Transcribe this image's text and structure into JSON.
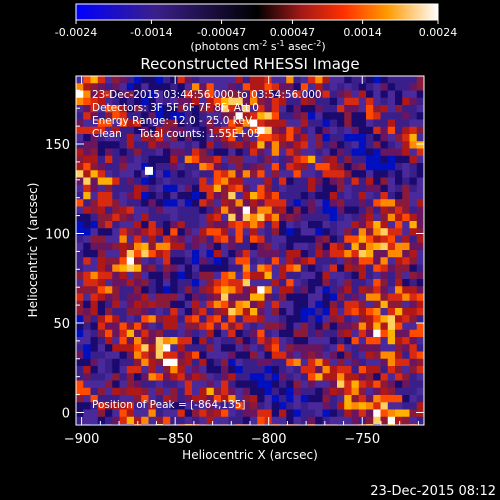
{
  "colorbar": {
    "ticks": [
      "-0.0024",
      "-0.0014",
      "-0.00047",
      "0.00047",
      "0.0014",
      "0.0024"
    ],
    "tick_values": [
      -0.0024,
      -0.0014,
      -0.00047,
      0.00047,
      0.0014,
      0.0024
    ],
    "range": [
      -0.0024,
      0.0024
    ],
    "unit_prefix": "(photons cm",
    "unit_exp1": "-2",
    "unit_mid": " s",
    "unit_exp2": "-1",
    "unit_mid2": " asec",
    "unit_exp3": "-2",
    "unit_suffix": ")",
    "stops": [
      "#0000ff",
      "#3a1f8a",
      "#000000",
      "#a01818",
      "#ff3000",
      "#ff9a00",
      "#ffffff"
    ]
  },
  "info": {
    "line1": "23-Dec-2015 03:44:56.000 to 03:54:56.000",
    "line2": "Detectors: 3F 5F 6F 7F 8F, Att 0",
    "line3": "Energy Range: 12.0 - 25.0 keV",
    "line4": "Clean     Total counts: 1.55E+05",
    "peak": "Position of Peak = [-864,135]"
  },
  "footer": "23-Dec-2015 08:12",
  "chart_data": {
    "type": "heatmap",
    "title": "Reconstructed RHESSI Image",
    "xlabel": "Heliocentric X (arcsec)",
    "ylabel": "Heliocentric Y (arcsec)",
    "xlim": [
      -903,
      -717
    ],
    "ylim": [
      -7,
      188
    ],
    "xticks": [
      -900,
      -850,
      -800,
      -750
    ],
    "yticks": [
      0,
      50,
      100,
      150
    ],
    "xtick_labels": [
      "−900",
      "−850",
      "−800",
      "−750"
    ],
    "ytick_labels": [
      "0",
      "50",
      "100",
      "150"
    ],
    "peak_position": [
      -864,
      135
    ],
    "grid": false
  }
}
